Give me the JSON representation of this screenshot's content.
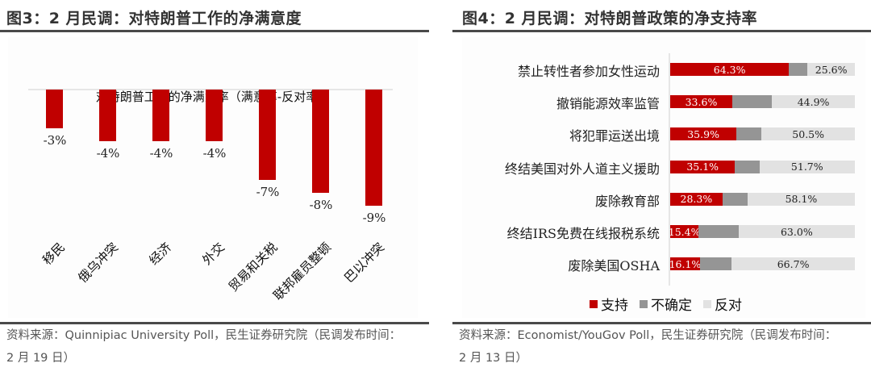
{
  "left_panel": {
    "figure_title": "图3：2 月民调：对特朗普工作的净满意度",
    "source_line1": "资料来源：Quinnipiac University Poll，民生证券研究院（民调发布时间：",
    "source_line2": "2 月 19 日）"
  },
  "right_panel": {
    "figure_title": "图4：2 月民调：对特朗普政策的净支持率",
    "source_line1": "资料来源：Economist/YouGov Poll，民生证券研究院（民调发布时间：",
    "source_line2": "2 月 13 日）"
  },
  "colors": {
    "support": "#c00000",
    "unsure": "#959595",
    "oppose": "#e2e2e2",
    "bar": "#c00000"
  },
  "chart_data": [
    {
      "type": "bar",
      "title": "对特朗普工作的净满意率（满意率-反对率）",
      "categories": [
        "移民",
        "俄乌冲突",
        "经济",
        "外交",
        "贸易和关税",
        "联邦雇员整顿",
        "巴以冲突"
      ],
      "values": [
        -3,
        -4,
        -4,
        -4,
        -7,
        -8,
        -9
      ],
      "value_labels": [
        "-3%",
        "-4%",
        "-4%",
        "-4%",
        "-7%",
        "-8%",
        "-9%"
      ],
      "unit": "%",
      "xlabel": "",
      "ylabel": "",
      "ylim": [
        -10,
        0
      ],
      "grid": false,
      "legend": null
    },
    {
      "type": "bar",
      "orientation": "horizontal",
      "stacked": true,
      "title": "",
      "categories": [
        "禁止转性者参加女性运动",
        "撤销能源效率监管",
        "将犯罪运送出境",
        "终结美国对外人道主义援助",
        "废除教育部",
        "终结IRS免费在线报税系统",
        "废除美国OSHA"
      ],
      "series": [
        {
          "name": "支持",
          "values": [
            64.3,
            33.6,
            35.9,
            35.1,
            28.3,
            15.4,
            16.1
          ],
          "labels": [
            "64.3%",
            "33.6%",
            "35.9%",
            "35.1%",
            "28.3%",
            "15.4%",
            "16.1%"
          ]
        },
        {
          "name": "不确定",
          "values": [
            10.1,
            21.5,
            13.6,
            13.2,
            13.6,
            21.6,
            17.2
          ]
        },
        {
          "name": "反对",
          "values": [
            25.6,
            44.9,
            50.5,
            51.7,
            58.1,
            63.0,
            66.7
          ],
          "labels": [
            "25.6%",
            "44.9%",
            "50.5%",
            "51.7%",
            "58.1%",
            "63.0%",
            "66.7%"
          ]
        }
      ],
      "xlim": [
        0,
        100
      ],
      "grid": false,
      "legend": {
        "position": "bottom",
        "entries": [
          "支持",
          "不确定",
          "反对"
        ]
      }
    }
  ]
}
